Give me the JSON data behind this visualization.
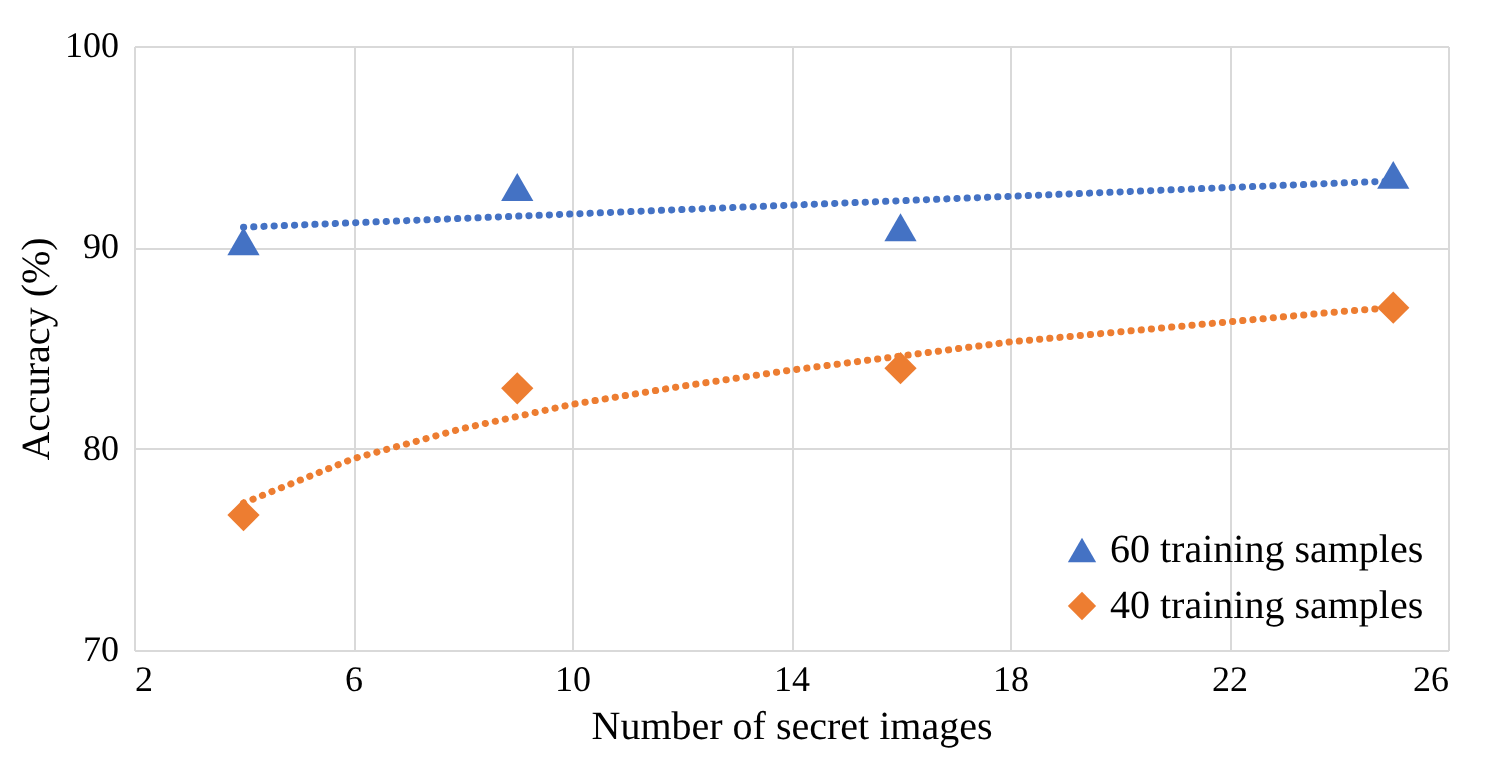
{
  "chart_data": {
    "type": "scatter",
    "xlabel": "Number of secret images",
    "ylabel": "Accuracy (%)",
    "xlim": [
      2,
      26
    ],
    "xticks": [
      2,
      6,
      10,
      14,
      18,
      22,
      26
    ],
    "ylim": [
      70,
      100
    ],
    "yticks": [
      70,
      80,
      90,
      100
    ],
    "grid": true,
    "legend": "bottom right",
    "series": [
      {
        "name": "60 training samples",
        "type": "scatter",
        "marker": "triangle",
        "color": "#4472c4",
        "x": [
          4,
          9,
          16,
          25
        ],
        "values": [
          90.3,
          93,
          91,
          93.6
        ]
      },
      {
        "name": "40 training samples",
        "type": "scatter",
        "marker": "diamond",
        "color": "#ed7d31",
        "x": [
          4,
          9,
          16,
          25
        ],
        "values": [
          76.7,
          83,
          84,
          87
        ]
      },
      {
        "type": "line",
        "color": "#4472c4",
        "line_style": "dotted",
        "x": [
          4,
          25
        ],
        "values": [
          91,
          93.3
        ]
      },
      {
        "type": "line",
        "color": "#ed7d31",
        "line_style": "dotted",
        "x": [
          4,
          6,
          8,
          10,
          12,
          14,
          16,
          18,
          20,
          22,
          24,
          25
        ],
        "values": [
          77.3,
          79.5,
          81,
          82.2,
          83.1,
          83.9,
          84.6,
          85.3,
          85.8,
          86.3,
          86.8,
          87
        ]
      }
    ]
  }
}
